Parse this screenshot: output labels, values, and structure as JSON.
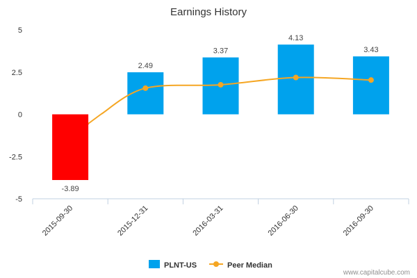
{
  "chart_data": {
    "type": "bar",
    "title": "Earnings History",
    "categories": [
      "2015-09-30",
      "2015-12-31",
      "2016-03-31",
      "2016-06-30",
      "2016-09-30"
    ],
    "y_ticks": [
      "5",
      "2.5",
      "0",
      "-2.5",
      "-5"
    ],
    "ylim": [
      -5,
      5
    ],
    "series": [
      {
        "name": "PLNT-US",
        "type": "bar",
        "values": [
          -3.89,
          2.49,
          3.37,
          4.13,
          3.43
        ],
        "value_labels": [
          "-3.89",
          "2.49",
          "3.37",
          "4.13",
          "3.43"
        ],
        "color": "#00a2ed",
        "negative_color": "#ff0000"
      },
      {
        "name": "Peer Median",
        "type": "line",
        "values": [
          null,
          1.55,
          1.75,
          2.18,
          2.03
        ],
        "color": "#f5a623"
      }
    ],
    "legend_position": "bottom-center",
    "grid": false
  },
  "credit": "www.capitalcube.com"
}
